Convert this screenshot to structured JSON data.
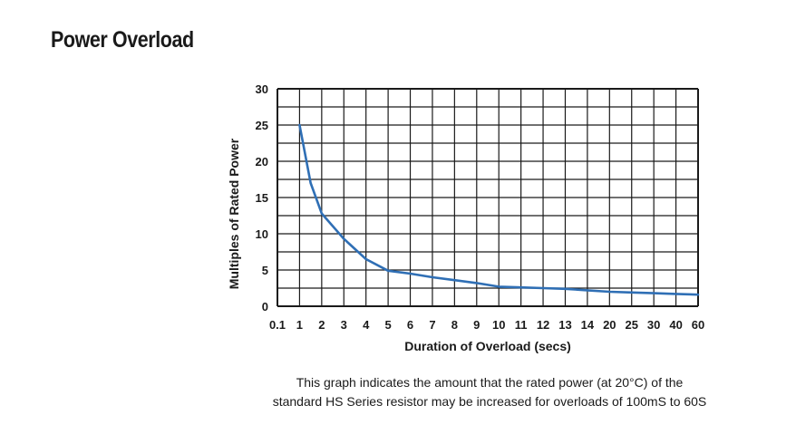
{
  "page": {
    "title": "Power Overload",
    "caption_line1": "This graph indicates the amount that the rated power (at 20°C) of the",
    "caption_line2": "standard HS Series resistor may be increased for overloads of 100mS to 60S"
  },
  "chart_data": {
    "type": "line",
    "title": "",
    "xlabel": "Duration of Overload (secs)",
    "ylabel": "Multiples of Rated Power",
    "x_categories": [
      "0.1",
      "1",
      "2",
      "3",
      "4",
      "5",
      "6",
      "7",
      "8",
      "9",
      "10",
      "11",
      "12",
      "13",
      "14",
      "20",
      "25",
      "30",
      "40",
      "60"
    ],
    "yticks": [
      0,
      5,
      10,
      15,
      20,
      25,
      30
    ],
    "ylim": [
      0,
      30
    ],
    "grid": true,
    "line_color": "#2f6fb5",
    "series": [
      {
        "name": "",
        "x": [
          "1",
          "1.5",
          "2",
          "3",
          "4",
          "5",
          "6",
          "7",
          "8",
          "9",
          "10",
          "11",
          "12",
          "13",
          "14",
          "20",
          "25",
          "30",
          "40",
          "60"
        ],
        "values": [
          25,
          17,
          12.8,
          9.3,
          6.5,
          4.9,
          4.5,
          4.0,
          3.6,
          3.2,
          2.7,
          2.6,
          2.5,
          2.4,
          2.2,
          2.0,
          1.9,
          1.8,
          1.7,
          1.6
        ]
      }
    ]
  }
}
